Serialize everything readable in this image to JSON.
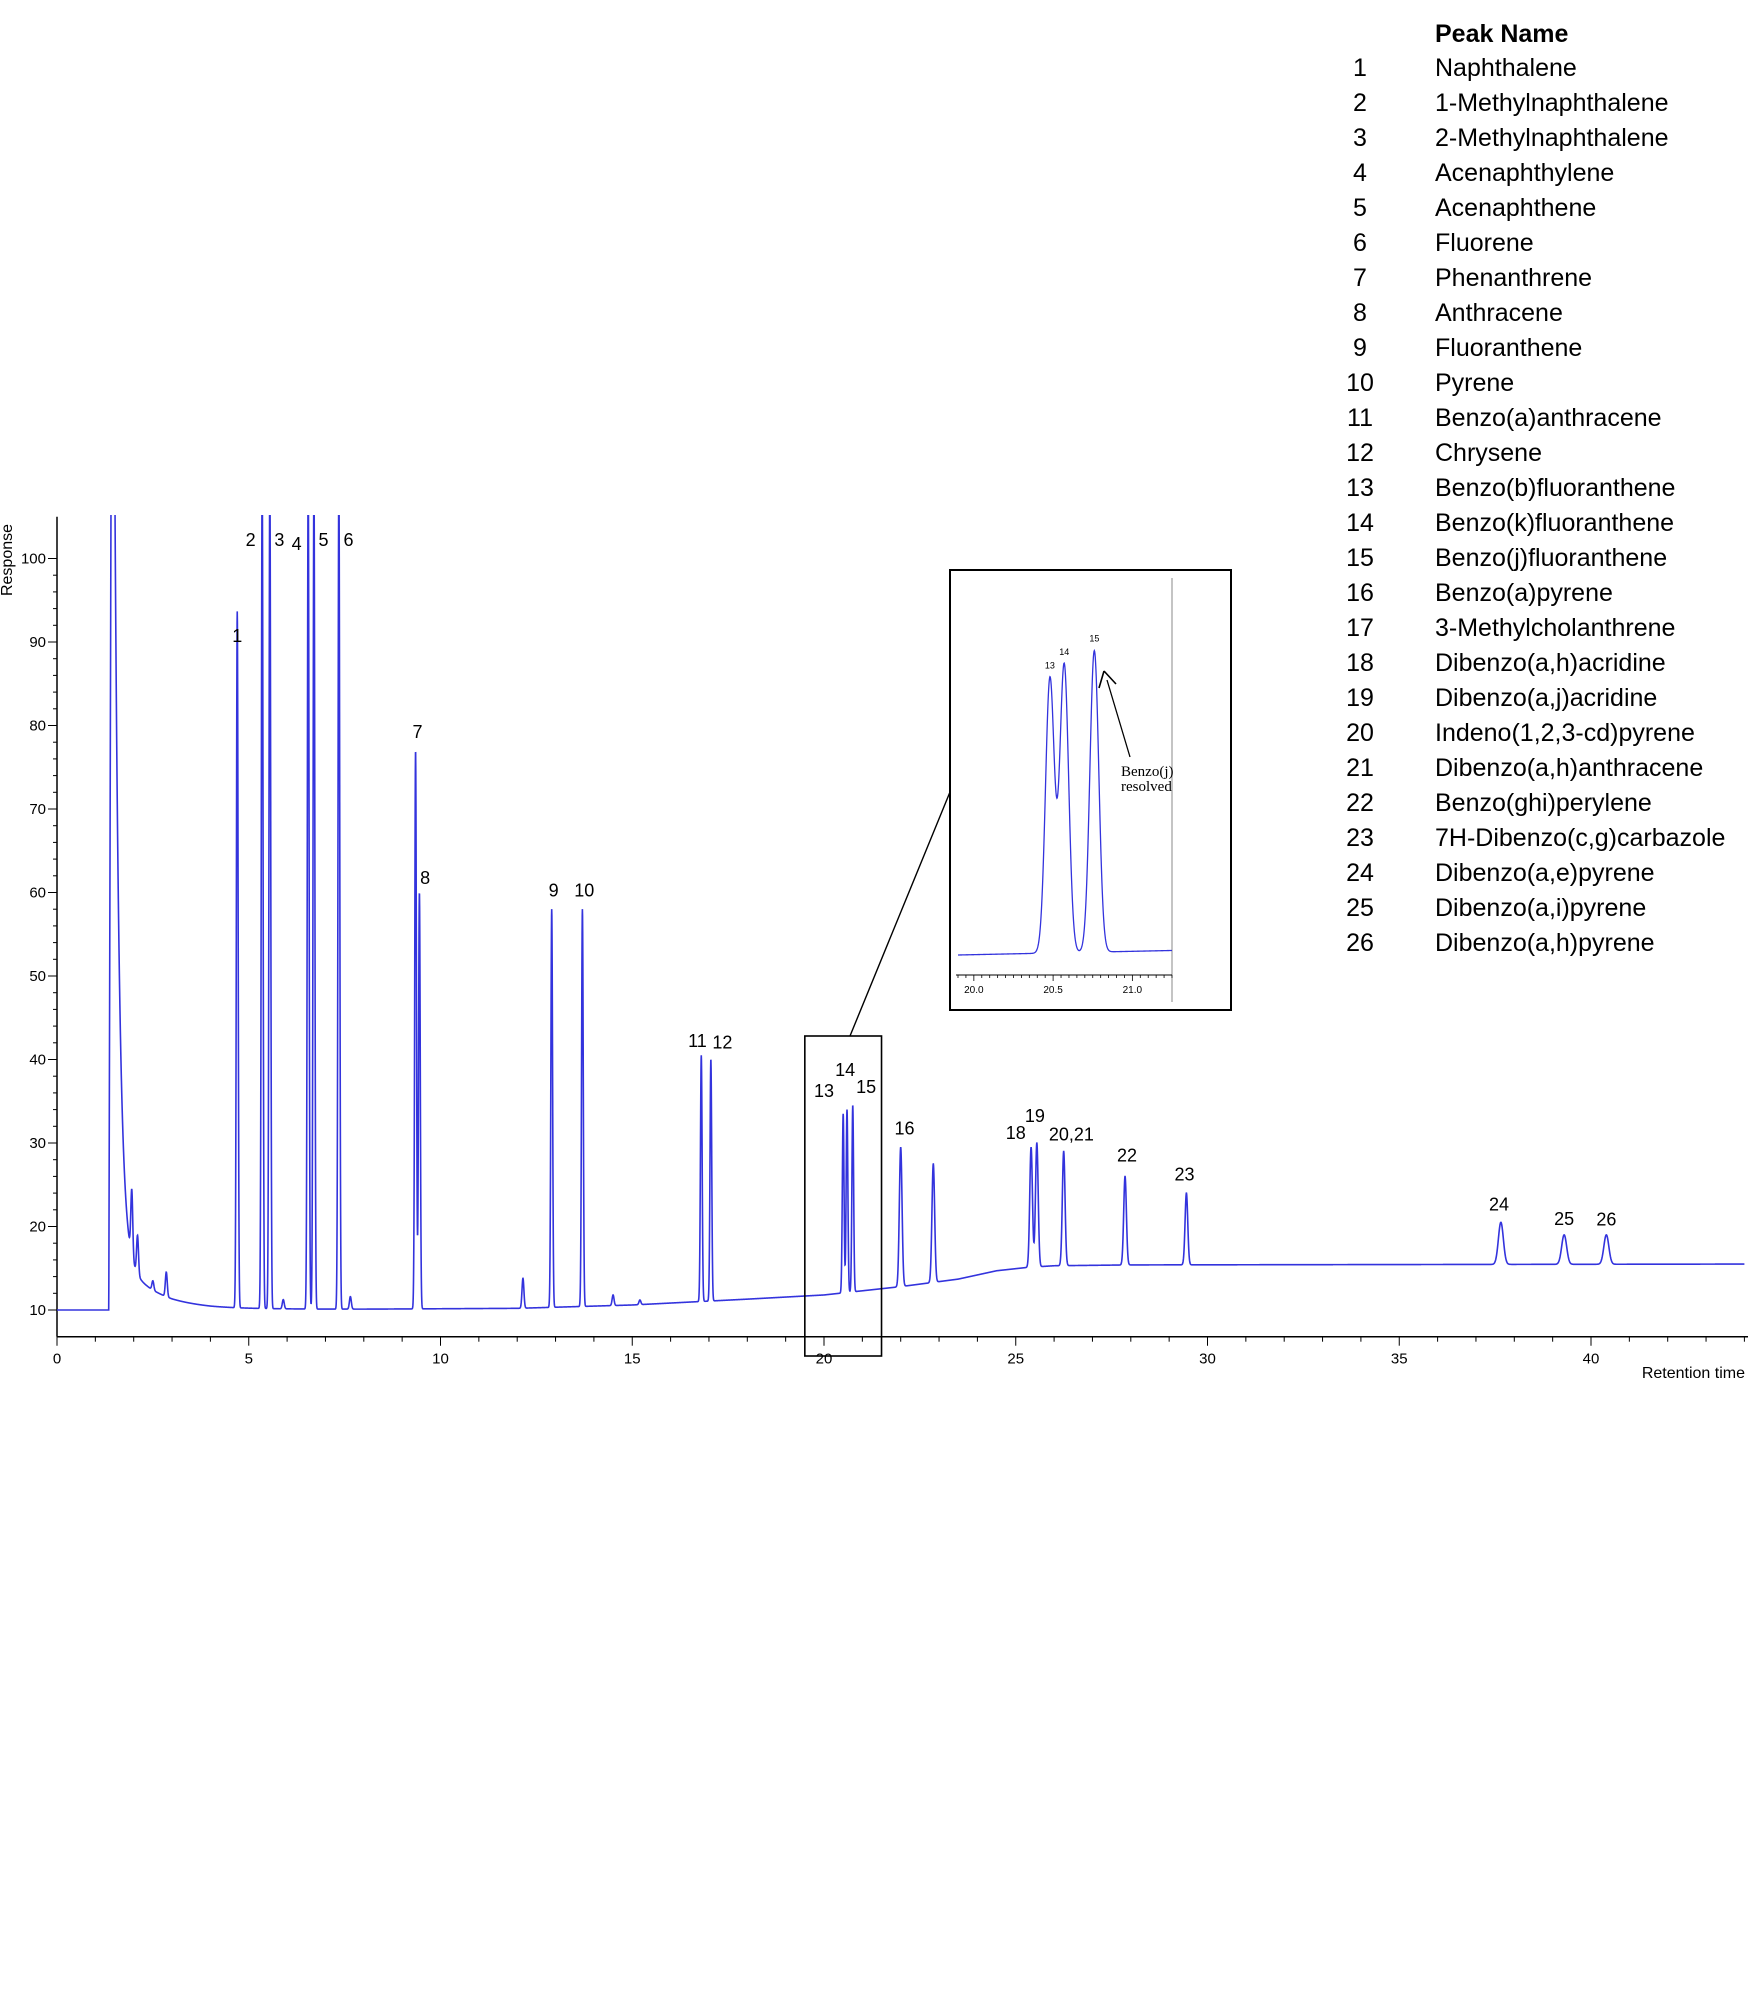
{
  "chart_data": {
    "type": "line",
    "xlabel": "Retention time",
    "ylabel": "Response",
    "xlim": [
      0,
      44
    ],
    "ylim": [
      8,
      105
    ],
    "xticks": [
      "0",
      "5",
      "10",
      "15",
      "20",
      "25",
      "30",
      "35",
      "40"
    ],
    "yticks": [
      "10",
      "20",
      "30",
      "40",
      "50",
      "60",
      "70",
      "80",
      "90",
      "100"
    ],
    "series_color": "#3333dd",
    "solvent_peak": {
      "x": 1.5,
      "y": 110
    },
    "baseline": [
      [
        0,
        10
      ],
      [
        1.35,
        10
      ],
      [
        2,
        10.6
      ],
      [
        3,
        10.2
      ],
      [
        4,
        10.1
      ],
      [
        8,
        10.1
      ],
      [
        12,
        10.2
      ],
      [
        15,
        10.6
      ],
      [
        18,
        11.3
      ],
      [
        20,
        11.8
      ],
      [
        22,
        12.8
      ],
      [
        23.5,
        13.7
      ],
      [
        24.5,
        14.7
      ],
      [
        25.3,
        15.1
      ],
      [
        26,
        15.3
      ],
      [
        28,
        15.4
      ],
      [
        44,
        15.5
      ]
    ],
    "peaks": [
      {
        "label": "1",
        "x": 4.7,
        "y": 93.5
      },
      {
        "label": "2",
        "x": 5.35,
        "y": 110
      },
      {
        "label": "3",
        "x": 5.55,
        "y": 110
      },
      {
        "label": "4",
        "x": 6.55,
        "y": 110
      },
      {
        "label": "5",
        "x": 6.7,
        "y": 110
      },
      {
        "label": "6",
        "x": 7.35,
        "y": 110
      },
      {
        "label": "7",
        "x": 9.35,
        "y": 77
      },
      {
        "label": "8",
        "x": 9.45,
        "y": 60
      },
      {
        "label": "9",
        "x": 12.9,
        "y": 58
      },
      {
        "label": "10",
        "x": 13.7,
        "y": 58
      },
      {
        "label": "11",
        "x": 16.8,
        "y": 40.5
      },
      {
        "label": "12",
        "x": 17.05,
        "y": 40
      },
      {
        "label": "13",
        "x": 20.5,
        "y": 33.5
      },
      {
        "label": "14",
        "x": 20.6,
        "y": 34
      },
      {
        "label": "15",
        "x": 20.75,
        "y": 34.5
      },
      {
        "label": "16",
        "x": 22.0,
        "y": 29.5
      },
      {
        "label": "",
        "x": 22.85,
        "y": 27.5
      },
      {
        "label": "18",
        "x": 25.4,
        "y": 29.5
      },
      {
        "label": "19",
        "x": 25.55,
        "y": 30
      },
      {
        "label": "20,21",
        "x": 26.25,
        "y": 29
      },
      {
        "label": "22",
        "x": 27.85,
        "y": 26
      },
      {
        "label": "23",
        "x": 29.45,
        "y": 24
      },
      {
        "label": "24",
        "x": 37.65,
        "y": 20.5
      },
      {
        "label": "25",
        "x": 39.3,
        "y": 19
      },
      {
        "label": "26",
        "x": 40.4,
        "y": 19
      }
    ],
    "minor_peaks": [
      {
        "x": 1.95,
        "y": 18.5
      },
      {
        "x": 2.1,
        "y": 15.2
      },
      {
        "x": 2.5,
        "y": 11.5
      },
      {
        "x": 2.85,
        "y": 13.2
      },
      {
        "x": 5.9,
        "y": 11.2
      },
      {
        "x": 7.65,
        "y": 11.6
      },
      {
        "x": 12.15,
        "y": 13.8
      },
      {
        "x": 14.5,
        "y": 11.8
      },
      {
        "x": 15.2,
        "y": 11.2
      }
    ],
    "zoom_box_xlim": [
      19.5,
      21.5
    ],
    "inset": {
      "xticks": [
        "20.0",
        "20.5",
        "21.0"
      ],
      "xlim": [
        19.9,
        21.25
      ],
      "peaks": [
        {
          "label": "13",
          "x": 20.48,
          "y": 0.82
        },
        {
          "label": "14",
          "x": 20.57,
          "y": 0.86
        },
        {
          "label": "15",
          "x": 20.76,
          "y": 0.9
        }
      ],
      "annotation": [
        "Benzo(j)",
        "resolved"
      ]
    }
  },
  "legend": {
    "header": "Peak Name",
    "items": [
      {
        "num": "1",
        "name": "Naphthalene"
      },
      {
        "num": "2",
        "name": "1-Methylnaphthalene"
      },
      {
        "num": "3",
        "name": "2-Methylnaphthalene"
      },
      {
        "num": "4",
        "name": "Acenaphthylene"
      },
      {
        "num": "5",
        "name": "Acenaphthene"
      },
      {
        "num": "6",
        "name": "Fluorene"
      },
      {
        "num": "7",
        "name": "Phenanthrene"
      },
      {
        "num": "8",
        "name": "Anthracene"
      },
      {
        "num": "9",
        "name": "Fluoranthene"
      },
      {
        "num": "10",
        "name": "Pyrene"
      },
      {
        "num": "11",
        "name": "Benzo(a)anthracene"
      },
      {
        "num": "12",
        "name": "Chrysene"
      },
      {
        "num": "13",
        "name": "Benzo(b)fluoranthene"
      },
      {
        "num": "14",
        "name": "Benzo(k)fluoranthene"
      },
      {
        "num": "15",
        "name": "Benzo(j)fluoranthene"
      },
      {
        "num": "16",
        "name": "Benzo(a)pyrene"
      },
      {
        "num": "17",
        "name": "3-Methylcholanthrene"
      },
      {
        "num": "18",
        "name": "Dibenzo(a,h)acridine"
      },
      {
        "num": "19",
        "name": "Dibenzo(a,j)acridine"
      },
      {
        "num": "20",
        "name": "Indeno(1,2,3-cd)pyrene"
      },
      {
        "num": "21",
        "name": "Dibenzo(a,h)anthracene"
      },
      {
        "num": "22",
        "name": "Benzo(ghi)perylene"
      },
      {
        "num": "23",
        "name": "7H-Dibenzo(c,g)carbazole"
      },
      {
        "num": "24",
        "name": "Dibenzo(a,e)pyrene"
      },
      {
        "num": "25",
        "name": "Dibenzo(a,i)pyrene"
      },
      {
        "num": "26",
        "name": "Dibenzo(a,h)pyrene"
      }
    ]
  }
}
